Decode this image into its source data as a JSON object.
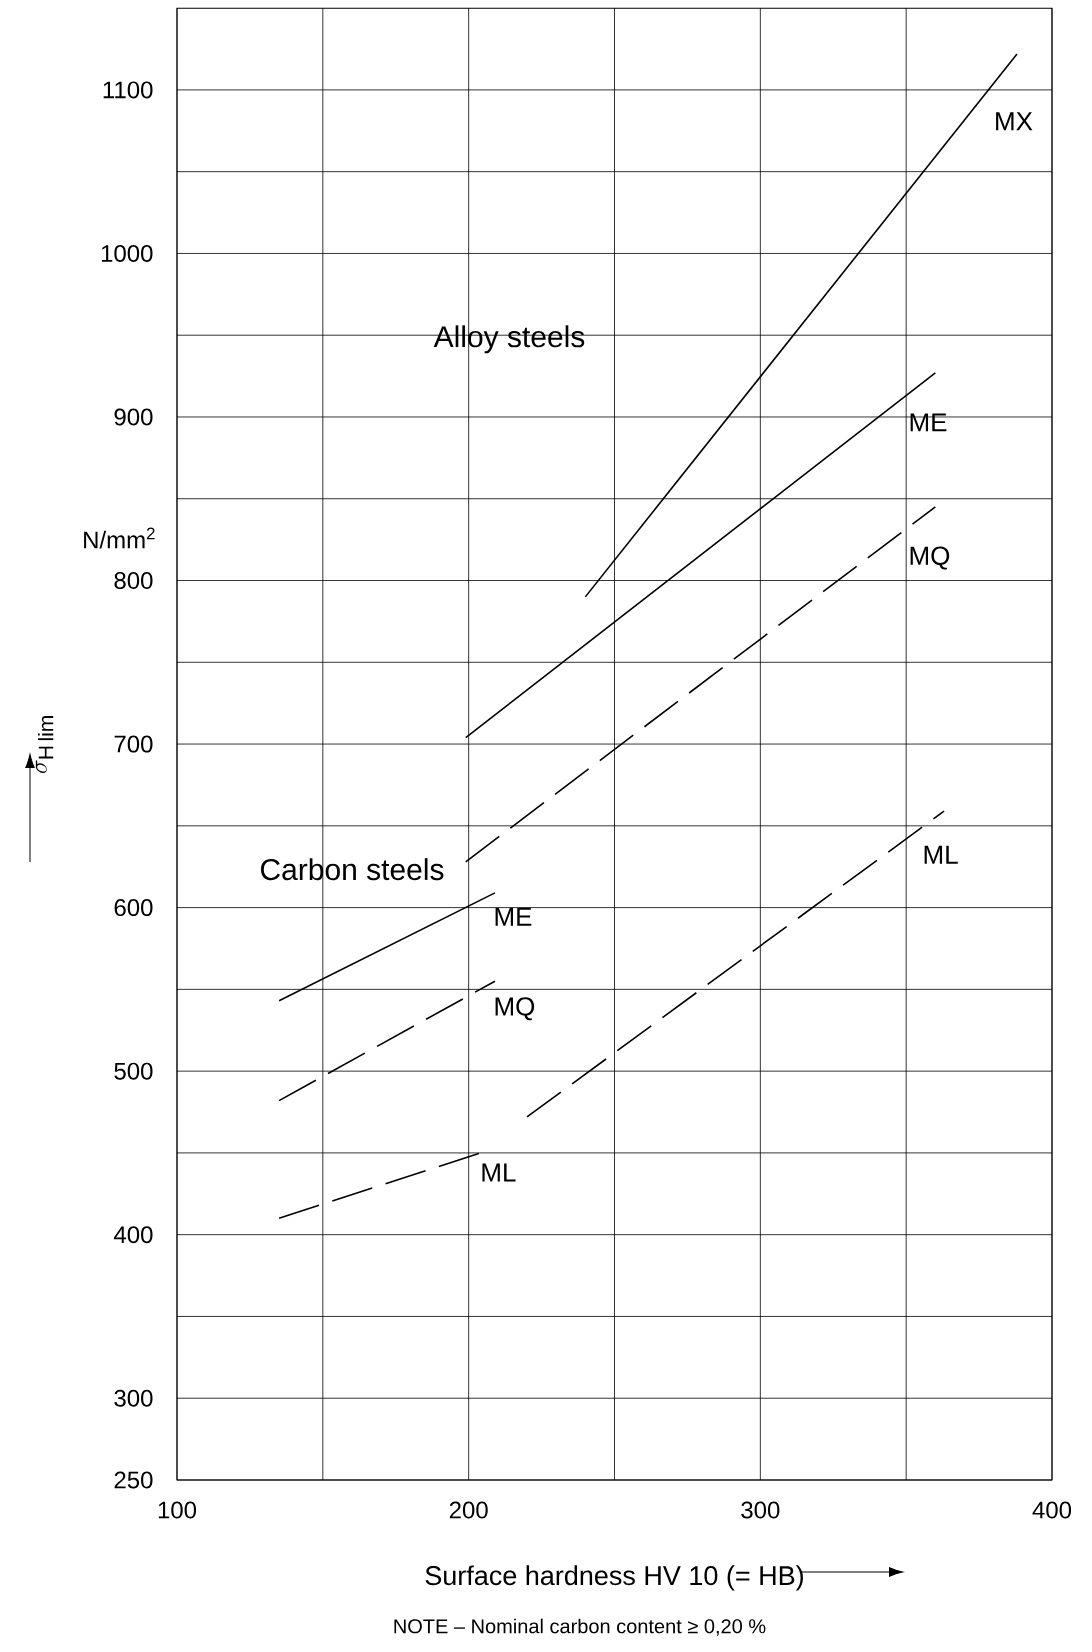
{
  "chart_data": {
    "type": "line",
    "xlabel": "Surface hardness HV 10 (= HB)",
    "ylabel": "\\sigma_{\\mathrm{H\\,lim}}",
    "annotations": [
      "Alloy steels",
      "Carbon steels",
      "N/mm$^{2}$",
      "NOTE – Nominal carbon content ≥ 0,20 %"
    ],
    "series": [
      {
        "name": "MX",
        "color": "#000000",
        "line_style": "solid",
        "x": [
          240,
          388
        ],
        "values": [
          790,
          1122
        ]
      },
      {
        "name": "ME",
        "color": "#000000",
        "line_style": "solid",
        "x": [
          199,
          360
        ],
        "values": [
          704,
          927
        ]
      },
      {
        "name": "MQ",
        "color": "#000000",
        "line_style": "dashed",
        "x": [
          199,
          360
        ],
        "values": [
          628,
          845
        ]
      },
      {
        "name": "ML",
        "color": "#000000",
        "line_style": "dashed",
        "x": [
          220,
          363
        ],
        "values": [
          472,
          659
        ]
      },
      {
        "name": "ME",
        "color": "#000000",
        "line_style": "solid",
        "x": [
          135,
          209
        ],
        "values": [
          543,
          609
        ]
      },
      {
        "name": "MQ",
        "color": "#000000",
        "line_style": "dashed",
        "x": [
          135,
          209
        ],
        "values": [
          482,
          555
        ]
      },
      {
        "name": "ML",
        "color": "#000000",
        "line_style": "dashed",
        "x": [
          135,
          204
        ],
        "values": [
          410,
          450
        ]
      }
    ],
    "xlim": [
      100,
      400
    ],
    "ylim": [
      250,
      1150
    ],
    "xticks": [
      100,
      {
        "value": 150,
        "label": null
      },
      200,
      {
        "value": 250,
        "label": null
      },
      300,
      {
        "value": 350,
        "label": null
      },
      400
    ],
    "yticks": [
      250,
      300,
      {
        "value": 350,
        "label": null
      },
      400,
      {
        "value": 450,
        "label": null
      },
      500,
      {
        "value": 550,
        "label": null
      },
      600,
      {
        "value": 650,
        "label": null
      },
      700,
      {
        "value": 750,
        "label": null
      },
      800,
      {
        "value": 850,
        "label": null
      },
      900,
      {
        "value": 950,
        "label": null
      },
      1000,
      {
        "value": 1050,
        "label": null
      },
      1100
    ],
    "grid": true,
    "marker": "none"
  }
}
